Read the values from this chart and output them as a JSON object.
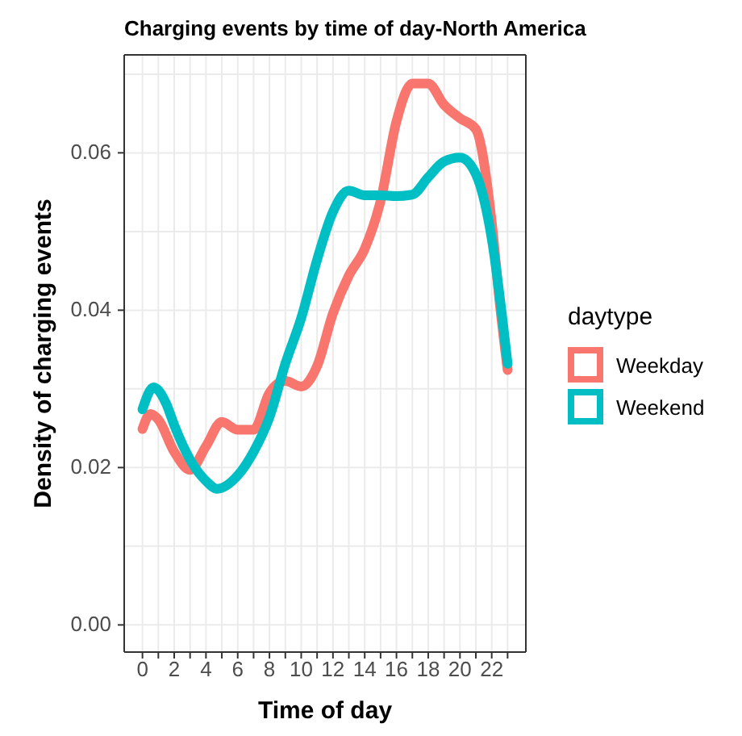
{
  "chart_data": {
    "type": "line",
    "title": "Charging events by time of day-North America",
    "xlabel": "Time of day",
    "ylabel": "Density of charging events",
    "legend_title": "daytype",
    "legend": "right",
    "grid": true,
    "line_style": "solid",
    "marker": "none",
    "xlim": [
      -1.15,
      24.15
    ],
    "xticks": [
      0,
      {
        "value": 1,
        "label": null
      },
      2,
      {
        "value": 3,
        "label": null
      },
      4,
      {
        "value": 5,
        "label": null
      },
      6,
      {
        "value": 7,
        "label": null
      },
      8,
      {
        "value": 9,
        "label": null
      },
      10,
      {
        "value": 11,
        "label": null
      },
      12,
      {
        "value": 13,
        "label": null
      },
      14,
      {
        "value": 15,
        "label": null
      },
      16,
      {
        "value": 17,
        "label": null
      },
      18,
      {
        "value": 19,
        "label": null
      },
      20,
      {
        "value": 21,
        "label": null
      },
      22,
      {
        "value": 23,
        "label": null
      }
    ],
    "ylim": [
      -0.00345,
      0.07245
    ],
    "yticks": [
      {
        "value": 0,
        "label": "0.00"
      },
      {
        "value": 0.01,
        "label": null
      },
      {
        "value": 0.02,
        "label": "0.02"
      },
      {
        "value": 0.03,
        "label": null
      },
      {
        "value": 0.04,
        "label": "0.04"
      },
      {
        "value": 0.05,
        "label": null
      },
      {
        "value": 0.06,
        "label": "0.06"
      },
      {
        "value": 0.07,
        "label": null
      }
    ],
    "series": [
      {
        "name": "Weekday",
        "color": "#f8766d",
        "x": [
          0,
          0.5,
          1,
          2,
          3,
          4,
          5,
          6,
          7,
          8,
          9,
          10,
          11,
          12,
          13,
          14,
          15,
          16,
          17,
          18,
          19,
          20,
          21,
          22,
          22.5,
          23
        ],
        "values": [
          0.0249,
          0.0268,
          0.0261,
          0.022,
          0.0197,
          0.0227,
          0.0258,
          0.0248,
          0.0248,
          0.0295,
          0.031,
          0.0303,
          0.0329,
          0.0396,
          0.0444,
          0.0478,
          0.0539,
          0.064,
          0.0688,
          0.0688,
          0.0661,
          0.0644,
          0.063,
          0.0512,
          0.041,
          0.0324
        ]
      },
      {
        "name": "Weekend",
        "color": "#00bfc4",
        "x": [
          0,
          0.7,
          1.5,
          2,
          3,
          4,
          4.7,
          6,
          7,
          8,
          9,
          10,
          11,
          12,
          13,
          14,
          15,
          16,
          17,
          18,
          19,
          20,
          21,
          22,
          23
        ],
        "values": [
          0.0274,
          0.0302,
          0.0281,
          0.0254,
          0.021,
          0.0183,
          0.0173,
          0.019,
          0.022,
          0.0264,
          0.0332,
          0.039,
          0.0464,
          0.0525,
          0.0552,
          0.0546,
          0.0546,
          0.0545,
          0.0547,
          0.0569,
          0.0589,
          0.0594,
          0.0573,
          0.0491,
          0.0332
        ]
      }
    ]
  }
}
